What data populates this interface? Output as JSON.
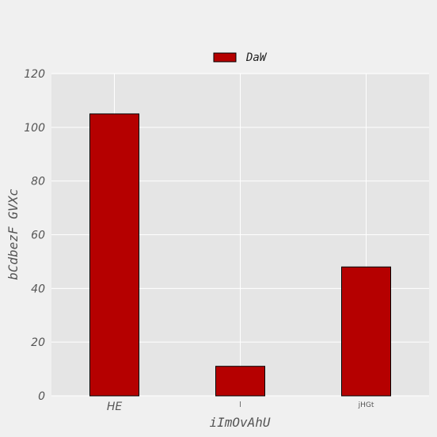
{
  "chart_data": {
    "type": "bar",
    "categories": [
      "HE",
      "l",
      "jHGt"
    ],
    "series": [
      {
        "name": "DaW",
        "values": [
          105,
          11,
          48
        ],
        "color": "#b50000"
      }
    ],
    "xlabel": "iImOvAhU",
    "ylabel": "bCdbezF GVXc",
    "ylim": [
      0,
      120
    ],
    "yticks": [
      0,
      20,
      40,
      60,
      80,
      100,
      120
    ],
    "grid": true,
    "legend_position": "top-center",
    "colors": {
      "figure_bg": "#f0f0f0",
      "plot_bg": "#e5e5e5",
      "grid": "#ffffff",
      "bar_edge": "#000000",
      "text": "#555555"
    }
  }
}
